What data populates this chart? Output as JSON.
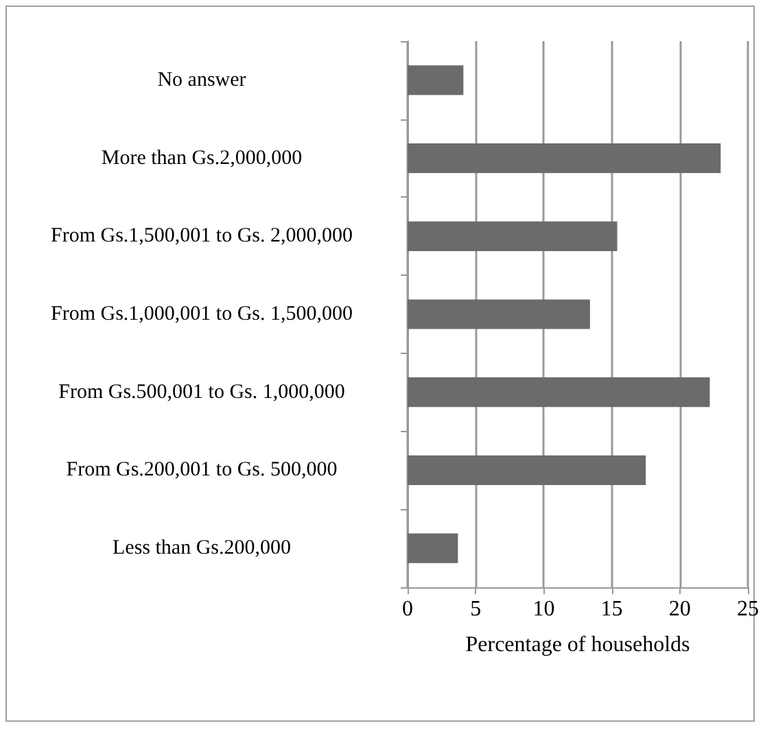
{
  "chart_data": {
    "type": "bar",
    "orientation": "horizontal",
    "xlabel": "Percentage of households",
    "categories": [
      "No answer",
      "More than Gs.2,000,000",
      "From Gs.1,500,001 to Gs. 2,000,000",
      "From Gs.1,000,001 to Gs. 1,500,000",
      "From Gs.500,001 to Gs. 1,000,000",
      "From Gs.200,001 to Gs. 500,000",
      "Less than Gs.200,000"
    ],
    "values": [
      4.1,
      23.0,
      15.4,
      13.4,
      22.2,
      17.5,
      3.7
    ],
    "color": "#6b6b6e",
    "xlim": [
      0,
      25
    ],
    "xticks": [
      0,
      5,
      10,
      15,
      20,
      25
    ],
    "grid": "x"
  }
}
